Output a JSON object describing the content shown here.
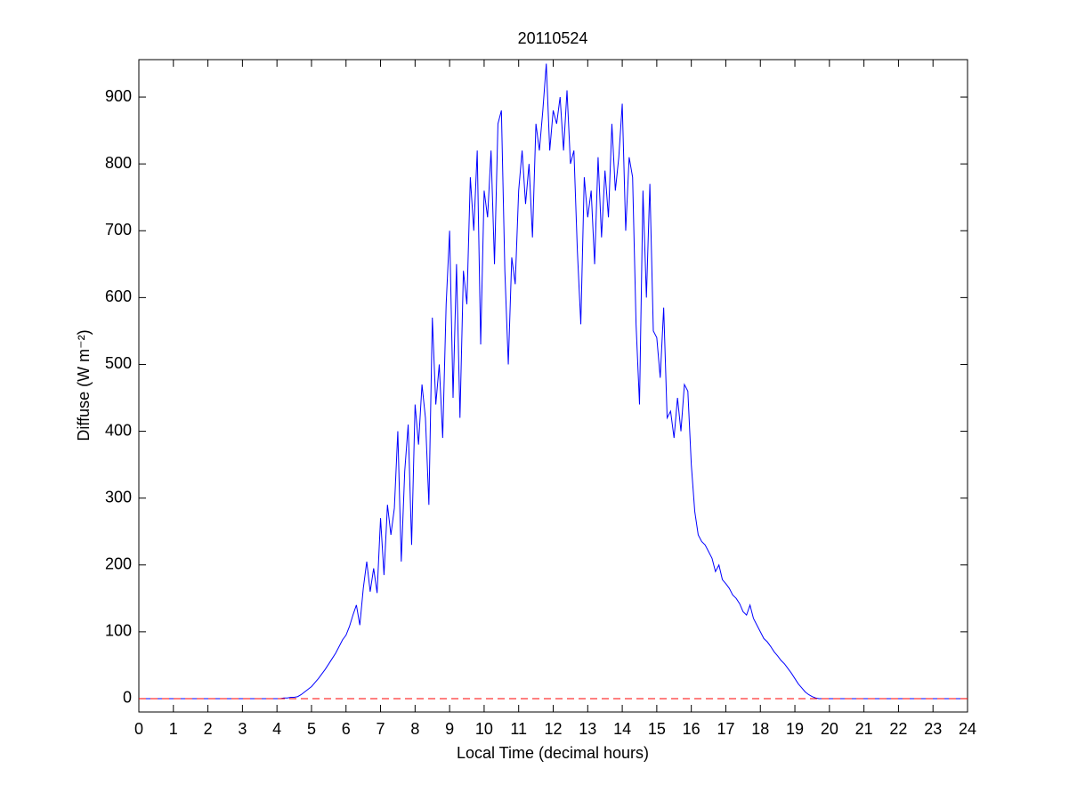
{
  "chart_data": {
    "type": "line",
    "title": "20110524",
    "xlabel": "Local Time (decimal hours)",
    "ylabel": "Diffuse (W m⁻²)",
    "x": [
      0,
      4.0,
      4.1,
      4.2,
      4.3,
      4.4,
      4.5,
      4.6,
      4.7,
      4.8,
      4.9,
      5.0,
      5.1,
      5.2,
      5.3,
      5.4,
      5.5,
      5.6,
      5.7,
      5.8,
      5.9,
      6.0,
      6.1,
      6.2,
      6.3,
      6.4,
      6.5,
      6.6,
      6.7,
      6.8,
      6.9,
      7.0,
      7.1,
      7.2,
      7.3,
      7.4,
      7.5,
      7.6,
      7.7,
      7.8,
      7.9,
      8.0,
      8.1,
      8.2,
      8.3,
      8.4,
      8.5,
      8.6,
      8.7,
      8.8,
      8.9,
      9.0,
      9.1,
      9.2,
      9.3,
      9.4,
      9.5,
      9.6,
      9.7,
      9.8,
      9.9,
      10.0,
      10.1,
      10.2,
      10.3,
      10.4,
      10.5,
      10.6,
      10.7,
      10.8,
      10.9,
      11.0,
      11.1,
      11.2,
      11.3,
      11.4,
      11.5,
      11.6,
      11.7,
      11.8,
      11.9,
      12.0,
      12.1,
      12.2,
      12.3,
      12.4,
      12.5,
      12.6,
      12.7,
      12.8,
      12.9,
      13.0,
      13.1,
      13.2,
      13.3,
      13.4,
      13.5,
      13.6,
      13.7,
      13.8,
      13.9,
      14.0,
      14.1,
      14.2,
      14.3,
      14.4,
      14.5,
      14.6,
      14.7,
      14.8,
      14.9,
      15.0,
      15.1,
      15.2,
      15.3,
      15.4,
      15.5,
      15.6,
      15.7,
      15.8,
      15.9,
      16.0,
      16.1,
      16.2,
      16.3,
      16.4,
      16.5,
      16.6,
      16.7,
      16.8,
      16.9,
      17.0,
      17.1,
      17.2,
      17.3,
      17.4,
      17.5,
      17.6,
      17.7,
      17.8,
      17.9,
      18.0,
      18.1,
      18.2,
      18.3,
      18.4,
      18.5,
      18.6,
      18.7,
      18.8,
      18.9,
      19.0,
      19.1,
      19.2,
      19.3,
      19.4,
      19.5,
      19.6,
      19.7,
      19.8,
      19.9,
      20.0,
      24
    ],
    "series": [
      {
        "color": "#0000ff",
        "values": [
          0,
          0,
          0,
          1,
          1,
          2,
          2,
          3,
          6,
          10,
          14,
          18,
          24,
          30,
          37,
          44,
          52,
          60,
          68,
          78,
          88,
          95,
          108,
          125,
          140,
          110,
          165,
          205,
          160,
          195,
          158,
          270,
          185,
          290,
          245,
          285,
          400,
          205,
          340,
          410,
          230,
          440,
          380,
          470,
          420,
          290,
          570,
          440,
          500,
          390,
          590,
          700,
          450,
          650,
          420,
          640,
          590,
          780,
          700,
          820,
          530,
          760,
          720,
          820,
          650,
          860,
          880,
          640,
          500,
          660,
          620,
          760,
          820,
          740,
          800,
          690,
          860,
          820,
          880,
          950,
          820,
          880,
          860,
          900,
          820,
          910,
          800,
          820,
          670,
          560,
          780,
          720,
          760,
          650,
          810,
          690,
          790,
          720,
          860,
          760,
          810,
          890,
          700,
          810,
          780,
          560,
          440,
          760,
          600,
          770,
          550,
          540,
          480,
          585,
          420,
          430,
          390,
          450,
          400,
          470,
          460,
          350,
          280,
          245,
          235,
          230,
          220,
          210,
          190,
          200,
          178,
          172,
          165,
          155,
          150,
          142,
          130,
          125,
          140,
          120,
          110,
          100,
          90,
          85,
          78,
          70,
          64,
          57,
          52,
          45,
          38,
          30,
          22,
          16,
          10,
          6,
          3,
          1,
          0,
          0,
          0,
          0,
          0
        ]
      }
    ],
    "reference_line": {
      "value": 0,
      "color": "#ff0000",
      "style": "dashed"
    },
    "xlim": [
      0,
      24
    ],
    "xticks": [
      0,
      1,
      2,
      3,
      4,
      5,
      6,
      7,
      8,
      9,
      10,
      11,
      12,
      13,
      14,
      15,
      16,
      17,
      18,
      19,
      20,
      21,
      22,
      23,
      24
    ],
    "ylim": [
      -20,
      956
    ],
    "yticks": [
      0,
      100,
      200,
      300,
      400,
      500,
      600,
      700,
      800,
      900
    ]
  }
}
